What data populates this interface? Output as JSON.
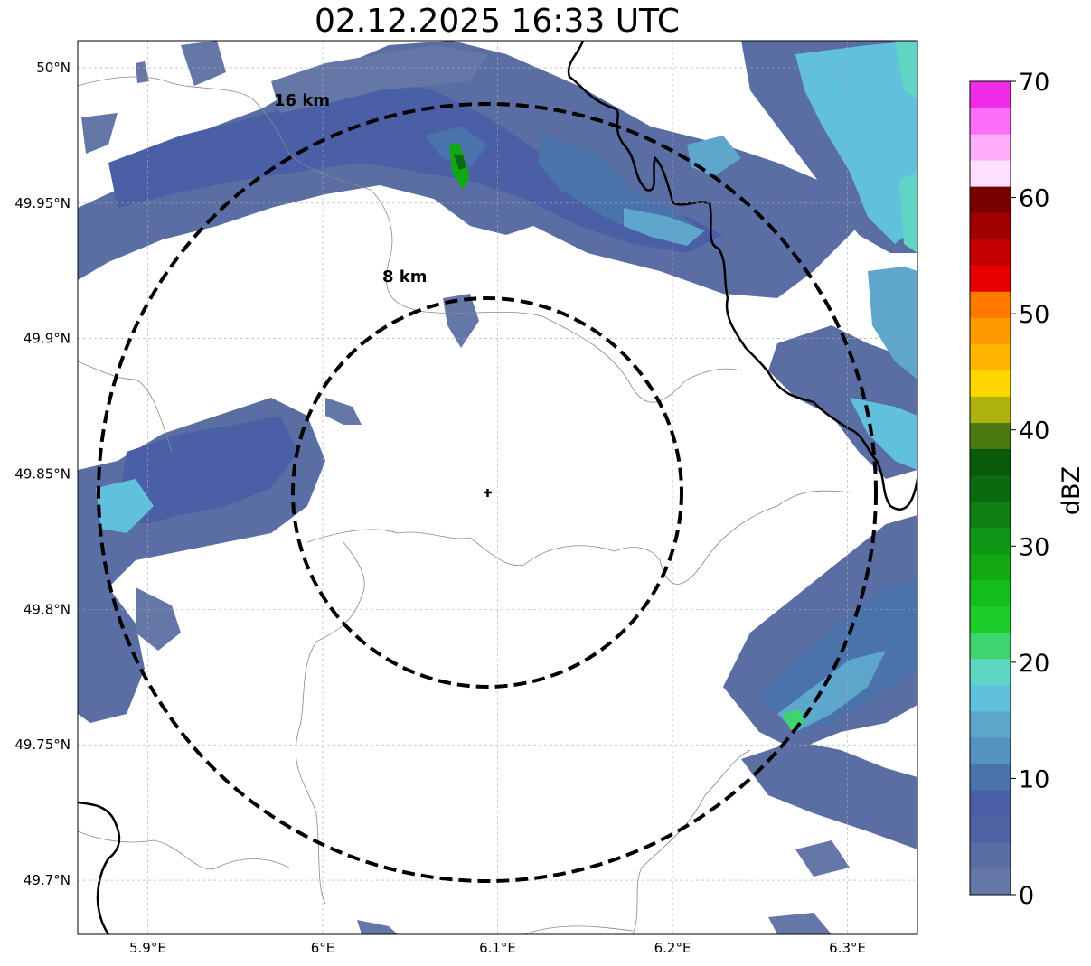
{
  "title": "02.12.2025 16:33 UTC",
  "map": {
    "x_ticks": [
      {
        "value": 5.9,
        "label": "5.9°E"
      },
      {
        "value": 6.0,
        "label": "6°E"
      },
      {
        "value": 6.1,
        "label": "6.1°E"
      },
      {
        "value": 6.2,
        "label": "6.2°E"
      },
      {
        "value": 6.3,
        "label": "6.3°E"
      }
    ],
    "y_ticks": [
      {
        "value": 50.0,
        "label": "50°N"
      },
      {
        "value": 49.95,
        "label": "49.95°N"
      },
      {
        "value": 49.9,
        "label": "49.9°N"
      },
      {
        "value": 49.85,
        "label": "49.85°N"
      },
      {
        "value": 49.8,
        "label": "49.8°N"
      },
      {
        "value": 49.75,
        "label": "49.75°N"
      },
      {
        "value": 49.7,
        "label": "49.7°N"
      }
    ],
    "extent": {
      "lon": [
        5.86,
        6.34
      ],
      "lat": [
        49.68,
        50.01
      ]
    },
    "radar_site": {
      "lon": 6.095,
      "lat": 49.843
    },
    "range_rings": [
      {
        "label": "8 km",
        "radius_km": 8
      },
      {
        "label": "16 km",
        "radius_km": 16
      }
    ]
  },
  "colorbar": {
    "label": "dBZ",
    "ticks": [
      "0",
      "10",
      "20",
      "30",
      "40",
      "50",
      "60",
      "70"
    ],
    "colors": [
      "#6577a6",
      "#5a6ea3",
      "#4e63a3",
      "#4a5fa6",
      "#4a73ab",
      "#5692c0",
      "#5ea6cc",
      "#61c1dc",
      "#5fd6c3",
      "#3fd56e",
      "#1ccc28",
      "#14bc1c",
      "#12a814",
      "#0f9818",
      "#0e7f12",
      "#0b6a10",
      "#0a5a0c",
      "#4a7a10",
      "#adb20c",
      "#ffd600",
      "#ffb400",
      "#ff9a00",
      "#ff7a00",
      "#e80000",
      "#c40000",
      "#a00000",
      "#7a0000",
      "#ffdfff",
      "#ffaef9",
      "#ff6ef6",
      "#ef2de9"
    ]
  }
}
